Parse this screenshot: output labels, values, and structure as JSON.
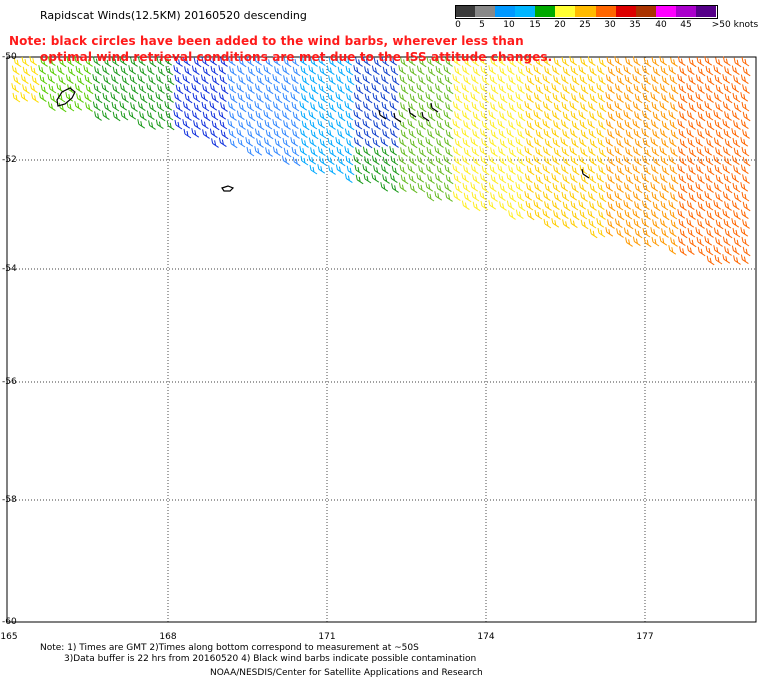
{
  "title": "Rapidscat Winds(12.5KM) 20160520 descending",
  "note_line1": "Note: black circles have been added to the wind barbs, wherever less than",
  "note_line2": "optimal wind retrieval conditions are met due to the ISS attitude changes.",
  "color_scale": {
    "labels": [
      "0",
      "5",
      "10",
      "15",
      "20",
      "25",
      "30",
      "35",
      "40",
      "45",
      ">50 knots"
    ],
    "colors": [
      "#3a3a3a",
      "#888888",
      "#0099ff",
      "#00b6ff",
      "#00aa00",
      "#ffff33",
      "#ffbb00",
      "#ff6600",
      "#dd0000",
      "#aa3300",
      "#ff00ff",
      "#aa00cc",
      "#550088"
    ]
  },
  "lat_labels": [
    "-50",
    "-52",
    "-54",
    "-56",
    "-58",
    "-60"
  ],
  "lon_labels": [
    "165",
    "168",
    "171",
    "174",
    "177"
  ],
  "footer": {
    "line1": "Note: 1) Times are GMT 2)Times along bottom correspond to measurement at ~50S",
    "line2": "3)Data buffer is 22 hrs from 20160520 4) Black wind barbs indicate possible contamination",
    "line3": "NOAA/NESDIS/Center for Satellite Applications and Research"
  }
}
